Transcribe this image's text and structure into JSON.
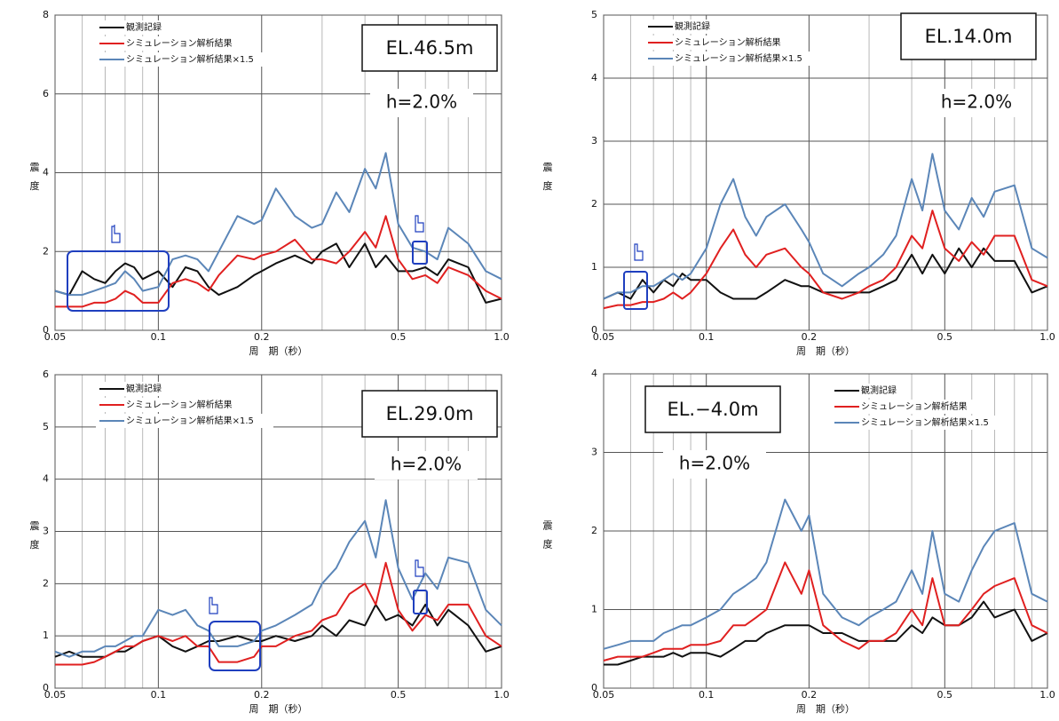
{
  "chart_data": [
    {
      "type": "line",
      "title": "EL.46.5m",
      "annotation": "h=2.0%",
      "xlabel": "周　期（秒）",
      "ylabel": "震度",
      "xscale": "log",
      "xlim": [
        0.05,
        1
      ],
      "ylim": [
        0,
        8
      ],
      "xticks": [
        0.05,
        0.1,
        0.2,
        0.5,
        {
          "value": 1,
          "label": "1.0"
        }
      ],
      "minor_xticks": [
        0.06,
        0.07,
        0.08,
        0.09,
        0.3,
        0.4,
        0.6,
        0.7,
        0.8,
        0.9
      ],
      "yticks": [
        0,
        2,
        4,
        6,
        8
      ],
      "grid": true,
      "x": [
        0.05,
        0.055,
        0.06,
        0.065,
        0.07,
        0.075,
        0.08,
        0.085,
        0.09,
        0.1,
        0.11,
        0.12,
        0.13,
        0.14,
        0.15,
        0.17,
        0.19,
        0.2,
        0.22,
        0.25,
        0.28,
        0.3,
        0.33,
        0.36,
        0.4,
        0.43,
        0.46,
        0.5,
        0.55,
        0.6,
        0.65,
        0.7,
        0.8,
        0.9,
        1.0
      ],
      "series": [
        {
          "name": "観測記録",
          "color": "#111111",
          "values": [
            1.0,
            0.9,
            1.5,
            1.3,
            1.2,
            1.5,
            1.7,
            1.6,
            1.3,
            1.5,
            1.1,
            1.6,
            1.5,
            1.1,
            0.9,
            1.1,
            1.4,
            1.5,
            1.7,
            1.9,
            1.7,
            2.0,
            2.2,
            1.6,
            2.2,
            1.6,
            1.9,
            1.5,
            1.5,
            1.6,
            1.4,
            1.8,
            1.6,
            0.7,
            0.8
          ]
        },
        {
          "name": "シミュレーション解析結果",
          "color": "#e02020",
          "values": [
            0.6,
            0.6,
            0.6,
            0.7,
            0.7,
            0.8,
            1.0,
            0.9,
            0.7,
            0.7,
            1.2,
            1.3,
            1.2,
            1.0,
            1.4,
            1.9,
            1.8,
            1.9,
            2.0,
            2.3,
            1.8,
            1.8,
            1.7,
            2.0,
            2.5,
            2.1,
            2.9,
            1.8,
            1.3,
            1.4,
            1.2,
            1.6,
            1.4,
            1.0,
            0.8
          ]
        },
        {
          "name": "シミュレーション解析結果×1.5",
          "color": "#5b86b8",
          "values": [
            1.0,
            0.9,
            0.9,
            1.0,
            1.1,
            1.2,
            1.5,
            1.3,
            1.0,
            1.1,
            1.8,
            1.9,
            1.8,
            1.5,
            2.0,
            2.9,
            2.7,
            2.8,
            3.6,
            2.9,
            2.6,
            2.7,
            3.5,
            3.0,
            4.1,
            3.6,
            4.5,
            2.7,
            2.1,
            2.0,
            1.8,
            2.6,
            2.2,
            1.5,
            1.3
          ]
        }
      ]
    },
    {
      "type": "line",
      "title": "EL.14.0m",
      "annotation": "h=2.0%",
      "xlabel": "周　期（秒）",
      "ylabel": "震度",
      "xscale": "log",
      "xlim": [
        0.05,
        1
      ],
      "ylim": [
        0,
        5
      ],
      "xticks": [
        0.05,
        0.1,
        0.2,
        0.5,
        {
          "value": 1,
          "label": "1.0"
        }
      ],
      "minor_xticks": [
        0.06,
        0.07,
        0.08,
        0.09,
        0.3,
        0.4,
        0.6,
        0.7,
        0.8,
        0.9
      ],
      "yticks": [
        0,
        1,
        2,
        3,
        4,
        5
      ],
      "grid": true,
      "x": [
        0.05,
        0.055,
        0.06,
        0.065,
        0.07,
        0.075,
        0.08,
        0.085,
        0.09,
        0.1,
        0.11,
        0.12,
        0.13,
        0.14,
        0.15,
        0.17,
        0.19,
        0.2,
        0.22,
        0.25,
        0.28,
        0.3,
        0.33,
        0.36,
        0.4,
        0.43,
        0.46,
        0.5,
        0.55,
        0.6,
        0.65,
        0.7,
        0.8,
        0.9,
        1.0
      ],
      "series": [
        {
          "name": "観測記録",
          "color": "#111111",
          "values": [
            0.5,
            0.6,
            0.5,
            0.8,
            0.6,
            0.8,
            0.7,
            0.9,
            0.8,
            0.8,
            0.6,
            0.5,
            0.5,
            0.5,
            0.6,
            0.8,
            0.7,
            0.7,
            0.6,
            0.6,
            0.6,
            0.6,
            0.7,
            0.8,
            1.2,
            0.9,
            1.2,
            0.9,
            1.3,
            1.0,
            1.3,
            1.1,
            1.1,
            0.6,
            0.7
          ]
        },
        {
          "name": "シミュレーション解析結果",
          "color": "#e02020",
          "values": [
            0.35,
            0.4,
            0.4,
            0.45,
            0.45,
            0.5,
            0.6,
            0.5,
            0.6,
            0.9,
            1.3,
            1.6,
            1.2,
            1.0,
            1.2,
            1.3,
            1.0,
            0.9,
            0.6,
            0.5,
            0.6,
            0.7,
            0.8,
            1.0,
            1.5,
            1.3,
            1.9,
            1.3,
            1.1,
            1.4,
            1.2,
            1.5,
            1.5,
            0.8,
            0.7
          ]
        },
        {
          "name": "シミュレーション解析結果×1.5",
          "color": "#5b86b8",
          "values": [
            0.5,
            0.6,
            0.6,
            0.7,
            0.7,
            0.8,
            0.9,
            0.8,
            0.9,
            1.3,
            2.0,
            2.4,
            1.8,
            1.5,
            1.8,
            2.0,
            1.6,
            1.4,
            0.9,
            0.7,
            0.9,
            1.0,
            1.2,
            1.5,
            2.4,
            1.9,
            2.8,
            1.9,
            1.6,
            2.1,
            1.8,
            2.2,
            2.3,
            1.3,
            1.15
          ]
        }
      ]
    },
    {
      "type": "line",
      "title": "EL.29.0m",
      "annotation": "h=2.0%",
      "xlabel": "周　期（秒）",
      "ylabel": "震度",
      "xscale": "log",
      "xlim": [
        0.05,
        1
      ],
      "ylim": [
        0,
        6
      ],
      "xticks": [
        0.05,
        0.1,
        0.2,
        0.5,
        {
          "value": 1,
          "label": "1.0"
        }
      ],
      "minor_xticks": [
        0.06,
        0.07,
        0.08,
        0.09,
        0.3,
        0.4,
        0.6,
        0.7,
        0.8,
        0.9
      ],
      "yticks": [
        0,
        1,
        2,
        3,
        4,
        5,
        6
      ],
      "grid": true,
      "x": [
        0.05,
        0.055,
        0.06,
        0.065,
        0.07,
        0.075,
        0.08,
        0.085,
        0.09,
        0.1,
        0.11,
        0.12,
        0.13,
        0.14,
        0.15,
        0.17,
        0.19,
        0.2,
        0.22,
        0.25,
        0.28,
        0.3,
        0.33,
        0.36,
        0.4,
        0.43,
        0.46,
        0.5,
        0.55,
        0.6,
        0.65,
        0.7,
        0.8,
        0.9,
        1.0
      ],
      "series": [
        {
          "name": "観測記録",
          "color": "#111111",
          "values": [
            0.6,
            0.7,
            0.6,
            0.6,
            0.6,
            0.7,
            0.7,
            0.8,
            0.9,
            1.0,
            0.8,
            0.7,
            0.8,
            0.9,
            0.9,
            1.0,
            0.9,
            0.9,
            1.0,
            0.9,
            1.0,
            1.2,
            1.0,
            1.3,
            1.2,
            1.6,
            1.3,
            1.4,
            1.2,
            1.6,
            1.2,
            1.5,
            1.2,
            0.7,
            0.8
          ]
        },
        {
          "name": "シミュレーション解析結果",
          "color": "#e02020",
          "values": [
            0.45,
            0.45,
            0.45,
            0.5,
            0.6,
            0.7,
            0.8,
            0.8,
            0.9,
            1.0,
            0.9,
            1.0,
            0.8,
            0.8,
            0.5,
            0.5,
            0.6,
            0.8,
            0.8,
            1.0,
            1.1,
            1.3,
            1.4,
            1.8,
            2.0,
            1.6,
            2.4,
            1.5,
            1.1,
            1.4,
            1.3,
            1.6,
            1.6,
            1.0,
            0.8
          ]
        },
        {
          "name": "シミュレーション解析結果×1.5",
          "color": "#5b86b8",
          "values": [
            0.7,
            0.6,
            0.7,
            0.7,
            0.8,
            0.8,
            0.9,
            1.0,
            1.0,
            1.5,
            1.4,
            1.5,
            1.2,
            1.1,
            0.8,
            0.8,
            0.9,
            1.1,
            1.2,
            1.4,
            1.6,
            2.0,
            2.3,
            2.8,
            3.2,
            2.5,
            3.6,
            2.3,
            1.7,
            2.2,
            1.9,
            2.5,
            2.4,
            1.5,
            1.2
          ]
        }
      ]
    },
    {
      "type": "line",
      "title": "EL.−4.0m",
      "annotation": "h=2.0%",
      "xlabel": "周　期（秒）",
      "ylabel": "震度",
      "xscale": "log",
      "xlim": [
        0.05,
        1
      ],
      "ylim": [
        0,
        4
      ],
      "xticks": [
        0.05,
        0.1,
        0.2,
        0.5,
        {
          "value": 1,
          "label": "1.0"
        }
      ],
      "minor_xticks": [
        0.06,
        0.07,
        0.08,
        0.09,
        0.3,
        0.4,
        0.6,
        0.7,
        0.8,
        0.9
      ],
      "yticks": [
        0,
        1,
        2,
        3,
        4
      ],
      "grid": true,
      "x": [
        0.05,
        0.055,
        0.06,
        0.065,
        0.07,
        0.075,
        0.08,
        0.085,
        0.09,
        0.1,
        0.11,
        0.12,
        0.13,
        0.14,
        0.15,
        0.17,
        0.19,
        0.2,
        0.22,
        0.25,
        0.28,
        0.3,
        0.33,
        0.36,
        0.4,
        0.43,
        0.46,
        0.5,
        0.55,
        0.6,
        0.65,
        0.7,
        0.8,
        0.9,
        1.0
      ],
      "series": [
        {
          "name": "観測記録",
          "color": "#111111",
          "values": [
            0.3,
            0.3,
            0.35,
            0.4,
            0.4,
            0.4,
            0.45,
            0.4,
            0.45,
            0.45,
            0.4,
            0.5,
            0.6,
            0.6,
            0.7,
            0.8,
            0.8,
            0.8,
            0.7,
            0.7,
            0.6,
            0.6,
            0.6,
            0.6,
            0.8,
            0.7,
            0.9,
            0.8,
            0.8,
            0.9,
            1.1,
            0.9,
            1.0,
            0.6,
            0.7
          ]
        },
        {
          "name": "シミュレーション解析結果",
          "color": "#e02020",
          "values": [
            0.35,
            0.4,
            0.4,
            0.4,
            0.45,
            0.5,
            0.5,
            0.5,
            0.55,
            0.55,
            0.6,
            0.8,
            0.8,
            0.9,
            1.0,
            1.6,
            1.2,
            1.5,
            0.8,
            0.6,
            0.5,
            0.6,
            0.6,
            0.7,
            1.0,
            0.8,
            1.4,
            0.8,
            0.8,
            1.0,
            1.2,
            1.3,
            1.4,
            0.8,
            0.7
          ]
        },
        {
          "name": "シミュレーション解析結果×1.5",
          "color": "#5b86b8",
          "values": [
            0.5,
            0.55,
            0.6,
            0.6,
            0.6,
            0.7,
            0.75,
            0.8,
            0.8,
            0.9,
            1.0,
            1.2,
            1.3,
            1.4,
            1.6,
            2.4,
            2.0,
            2.2,
            1.2,
            0.9,
            0.8,
            0.9,
            1.0,
            1.1,
            1.5,
            1.2,
            2.0,
            1.2,
            1.1,
            1.5,
            1.8,
            2.0,
            2.1,
            1.2,
            1.1
          ]
        }
      ]
    }
  ]
}
